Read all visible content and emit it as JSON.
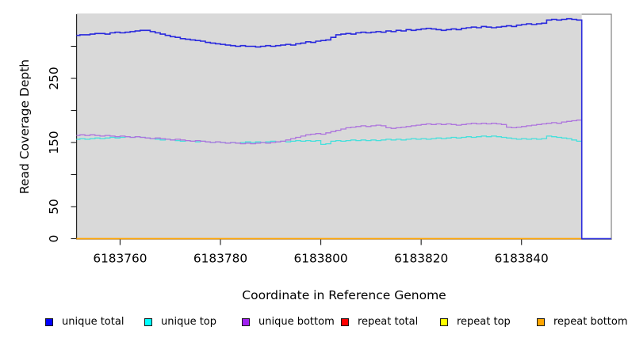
{
  "figure": {
    "background": "#ffffff"
  },
  "chart_data": {
    "type": "line",
    "subtype": "step",
    "title": "",
    "xlabel": "Coordinate in Reference Genome",
    "ylabel": "Read Coverage Depth",
    "xlim": [
      6183751.4,
      6183857.9
    ],
    "ylim": [
      0,
      350
    ],
    "grid": false,
    "panel_background": "#ffffff",
    "panel_border_color": "#808080",
    "axis_color": "#1a1a1a",
    "data_region": {
      "x_start": 6183751.4,
      "x_end": 6183852,
      "fill": "#d9d9d9"
    },
    "x_ticks": {
      "values": [
        6183760,
        6183780,
        6183800,
        6183820,
        6183840
      ],
      "labels": [
        "6183760",
        "6183780",
        "6183800",
        "6183820",
        "6183840"
      ]
    },
    "y_ticks": {
      "values": [
        0,
        50,
        100,
        150,
        200,
        250,
        300
      ],
      "labels": [
        "0",
        "50",
        "",
        "150",
        "",
        "250",
        ""
      ]
    },
    "x_start": 6183751,
    "x_step": 1,
    "series": [
      {
        "name": "unique total",
        "legend_color": "#0000ff",
        "line_color": "#2929dd",
        "line_width": 1.6,
        "end_drop_to_zero": true,
        "values": [
          317,
          318,
          318,
          319,
          320,
          320,
          319,
          321,
          322,
          321,
          322,
          323,
          324,
          325,
          325,
          323,
          321,
          319,
          317,
          315,
          314,
          312,
          311,
          310,
          309,
          308,
          306,
          305,
          304,
          303,
          302,
          301,
          300,
          301,
          300,
          300,
          299,
          300,
          301,
          300,
          301,
          302,
          303,
          302,
          304,
          305,
          307,
          306,
          308,
          309,
          310,
          314,
          318,
          319,
          320,
          319,
          321,
          322,
          321,
          322,
          323,
          322,
          324,
          323,
          325,
          324,
          326,
          325,
          326,
          327,
          328,
          327,
          326,
          325,
          326,
          327,
          326,
          328,
          329,
          330,
          329,
          331,
          330,
          329,
          330,
          331,
          332,
          331,
          333,
          334,
          335,
          334,
          335,
          336,
          341,
          342,
          341,
          342,
          343,
          342,
          341
        ]
      },
      {
        "name": "unique top",
        "legend_color": "#00ffff",
        "line_color": "#45e0dc",
        "line_width": 1.3,
        "end_drop_to_zero": true,
        "values": [
          155,
          156,
          155,
          156,
          157,
          156,
          157,
          158,
          157,
          158,
          159,
          158,
          159,
          158,
          157,
          156,
          155,
          154,
          155,
          154,
          153,
          152,
          153,
          152,
          151,
          152,
          151,
          150,
          151,
          150,
          149,
          150,
          149,
          150,
          151,
          150,
          151,
          150,
          151,
          152,
          151,
          152,
          151,
          152,
          153,
          152,
          153,
          152,
          153,
          147,
          148,
          152,
          153,
          152,
          153,
          154,
          153,
          154,
          153,
          154,
          153,
          154,
          155,
          154,
          155,
          154,
          155,
          156,
          155,
          156,
          155,
          156,
          157,
          156,
          157,
          158,
          157,
          158,
          159,
          158,
          159,
          160,
          159,
          160,
          159,
          158,
          157,
          156,
          155,
          156,
          155,
          156,
          155,
          156,
          160,
          159,
          158,
          157,
          156,
          154,
          152
        ]
      },
      {
        "name": "unique bottom",
        "legend_color": "#a020f0",
        "line_color": "#ad74dd",
        "line_width": 1.3,
        "end_drop_to_zero": true,
        "values": [
          161,
          162,
          161,
          162,
          161,
          160,
          161,
          160,
          159,
          160,
          159,
          158,
          159,
          158,
          157,
          156,
          157,
          156,
          155,
          154,
          155,
          154,
          153,
          152,
          153,
          152,
          151,
          150,
          151,
          150,
          149,
          150,
          149,
          148,
          149,
          148,
          149,
          150,
          149,
          150,
          151,
          152,
          154,
          156,
          158,
          160,
          162,
          163,
          164,
          163,
          165,
          167,
          169,
          171,
          173,
          174,
          175,
          176,
          175,
          176,
          177,
          176,
          173,
          172,
          173,
          174,
          175,
          176,
          177,
          178,
          179,
          178,
          179,
          178,
          179,
          178,
          177,
          178,
          179,
          180,
          179,
          180,
          179,
          180,
          179,
          178,
          174,
          173,
          174,
          175,
          176,
          177,
          178,
          179,
          180,
          181,
          180,
          182,
          183,
          184,
          185
        ]
      },
      {
        "name": "repeat total",
        "legend_color": "#ff0000",
        "line_color": "#ff0000",
        "line_width": 1.3,
        "constant": 0
      },
      {
        "name": "repeat top",
        "legend_color": "#ffff00",
        "line_color": "#ffff00",
        "line_width": 1.3,
        "constant": 0
      },
      {
        "name": "repeat bottom",
        "legend_color": "#ffa500",
        "line_color": "#ffa500",
        "line_width": 1.5,
        "constant": 0
      }
    ],
    "draw_order": [
      3,
      4,
      5,
      1,
      2,
      0
    ],
    "legend": {
      "position": "bottom",
      "items": [
        "unique total",
        "unique top",
        "unique bottom",
        "repeat total",
        "repeat top",
        "repeat bottom"
      ]
    }
  }
}
